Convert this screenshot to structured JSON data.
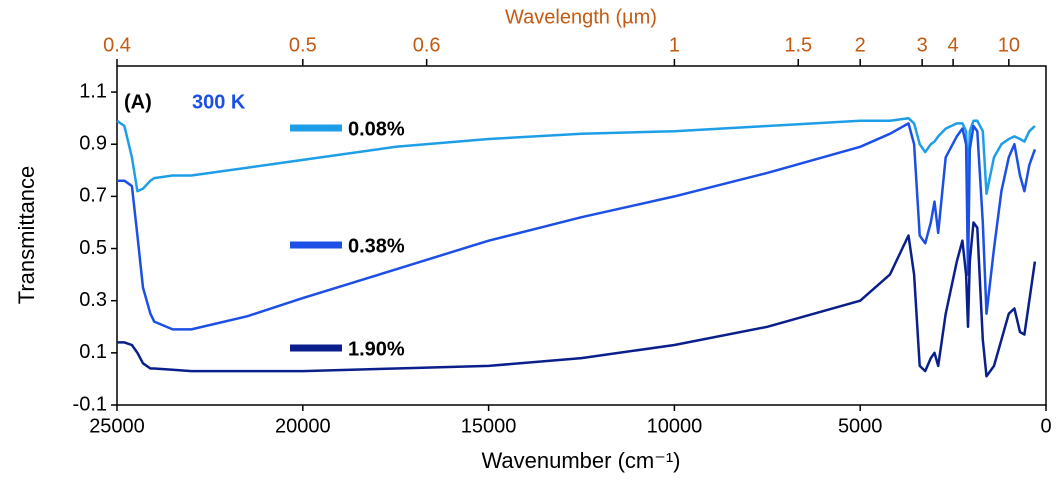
{
  "chart_data": {
    "type": "line",
    "x_label": "Wavenumber (cm⁻¹)",
    "y_label": "Transmittance",
    "x2_label": "Wavelength (µm)",
    "annotations": [
      "(A)",
      "300 K"
    ],
    "xlim": [
      25000,
      0
    ],
    "xticks": [
      25000,
      20000,
      15000,
      10000,
      5000,
      0
    ],
    "ylim": [
      -0.1,
      1.2
    ],
    "yticks": [
      -0.1,
      0.1,
      0.3,
      0.5,
      0.7,
      0.9,
      1.1
    ],
    "x2ticks": [
      0.4,
      0.5,
      0.6,
      1,
      1.5,
      2,
      3,
      4,
      10
    ],
    "x2_color": "#c55a11",
    "x": [
      25000,
      24800,
      24600,
      24450,
      24300,
      24100,
      24000,
      23500,
      23000,
      21500,
      20000,
      17500,
      15000,
      12500,
      10000,
      7500,
      5000,
      4200,
      3700,
      3550,
      3400,
      3250,
      3100,
      3000,
      2900,
      2700,
      2400,
      2250,
      2150,
      2100,
      2050,
      1950,
      1850,
      1700,
      1600,
      1400,
      1200,
      1000,
      850,
      700,
      580,
      450,
      300
    ],
    "series": [
      {
        "name": "0.08%",
        "color": "#1f9ee8",
        "values": [
          0.99,
          0.97,
          0.85,
          0.72,
          0.73,
          0.76,
          0.77,
          0.78,
          0.78,
          0.81,
          0.84,
          0.89,
          0.92,
          0.94,
          0.95,
          0.97,
          0.99,
          0.99,
          1.0,
          0.98,
          0.9,
          0.87,
          0.9,
          0.91,
          0.93,
          0.96,
          0.98,
          0.98,
          0.95,
          0.75,
          0.95,
          0.99,
          0.99,
          0.95,
          0.71,
          0.85,
          0.9,
          0.92,
          0.93,
          0.92,
          0.91,
          0.95,
          0.97
        ]
      },
      {
        "name": "0.38%",
        "color": "#1c4fe6",
        "values": [
          0.76,
          0.76,
          0.74,
          0.55,
          0.35,
          0.25,
          0.22,
          0.19,
          0.19,
          0.24,
          0.31,
          0.42,
          0.53,
          0.62,
          0.7,
          0.79,
          0.89,
          0.94,
          0.98,
          0.9,
          0.55,
          0.52,
          0.6,
          0.68,
          0.56,
          0.85,
          0.93,
          0.96,
          0.9,
          0.4,
          0.88,
          0.97,
          0.95,
          0.6,
          0.25,
          0.5,
          0.72,
          0.85,
          0.9,
          0.78,
          0.72,
          0.82,
          0.88
        ]
      },
      {
        "name": "1.90%",
        "color": "#0b1f8c",
        "values": [
          0.14,
          0.14,
          0.13,
          0.1,
          0.06,
          0.04,
          0.04,
          0.035,
          0.03,
          0.03,
          0.03,
          0.04,
          0.05,
          0.08,
          0.13,
          0.2,
          0.3,
          0.4,
          0.55,
          0.4,
          0.05,
          0.03,
          0.08,
          0.1,
          0.05,
          0.25,
          0.45,
          0.53,
          0.4,
          0.2,
          0.45,
          0.6,
          0.58,
          0.15,
          0.01,
          0.05,
          0.15,
          0.25,
          0.27,
          0.18,
          0.17,
          0.3,
          0.45
        ]
      }
    ]
  }
}
